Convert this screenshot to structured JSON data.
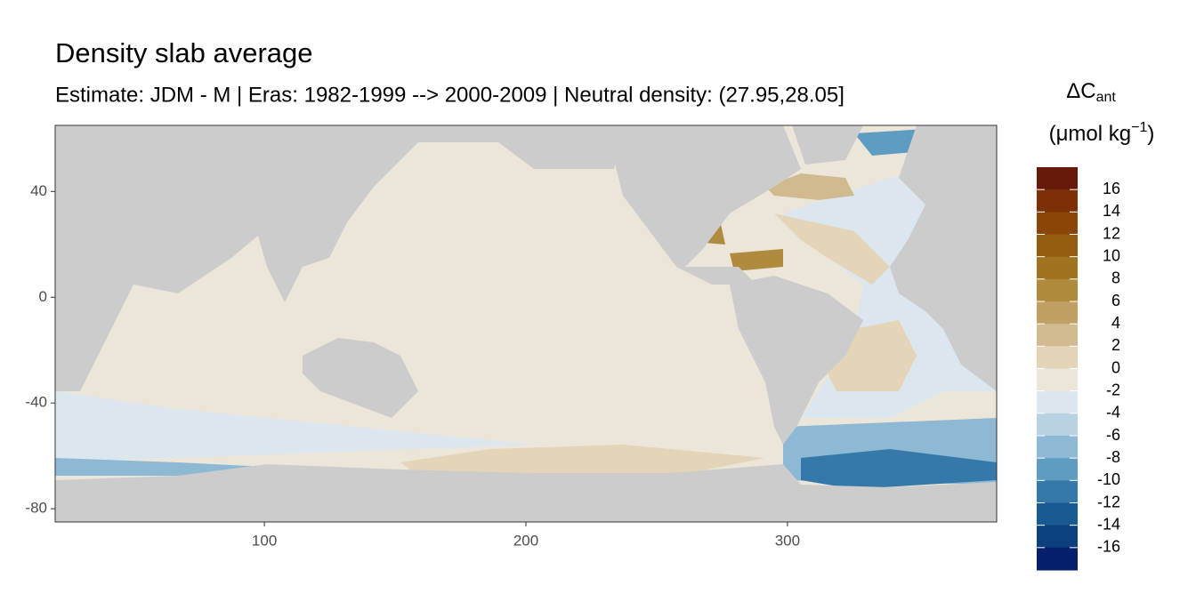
{
  "map": {
    "title": "Density slab average",
    "subtitle": "Estimate: JDM - M | Eras: 1982-1999 --> 2000-2009 | Neutral density: (27.95,28.05]",
    "xlim": [
      20,
      380
    ],
    "xticks": [
      100,
      200,
      300
    ],
    "ylim": [
      -85,
      65
    ],
    "yticks": [
      40,
      0,
      -40,
      -80
    ],
    "legend": {
      "title_main": "ΔC",
      "title_sub": "ant",
      "unit_open": "(μmol kg",
      "unit_sup": "−1",
      "unit_close": ")",
      "limits": [
        -18,
        18
      ],
      "breaks": [
        16,
        14,
        12,
        10,
        8,
        6,
        4,
        2,
        0,
        -2,
        -4,
        -6,
        -8,
        -10,
        -12,
        -14,
        -16
      ],
      "colors": [
        "#67190a",
        "#7d3008",
        "#8a4507",
        "#955d10",
        "#a2731f",
        "#b08a3d",
        "#c0a163",
        "#d1ba8f",
        "#e4d5b9",
        "#ece6da",
        "#dbe6ee",
        "#b9d2e3",
        "#8db9d4",
        "#5e9cc2",
        "#3579aa",
        "#1a5a92",
        "#0c3f7e",
        "#061f6a"
      ]
    }
  }
}
